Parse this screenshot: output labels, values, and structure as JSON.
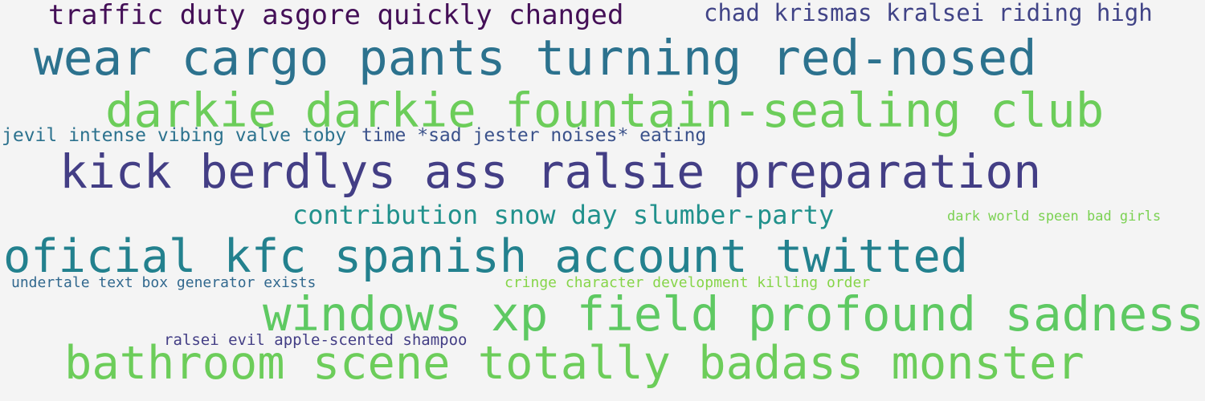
{
  "background": "#f4f4f4",
  "phrases": [
    {
      "text": "traffic duty asgore quickly changed",
      "color": "#440f57"
    },
    {
      "text": "chad krismas kralsei riding high",
      "color": "#414487"
    },
    {
      "text": "wear cargo pants turning red-nosed",
      "color": "#2c728e"
    },
    {
      "text": "darkie darkie fountain-sealing club",
      "color": "#6ccd5a"
    },
    {
      "text": "jevil intense vibing valve toby",
      "color": "#2c728e"
    },
    {
      "text": "time *sad jester noises* eating",
      "color": "#3b528b"
    },
    {
      "text": "kick berdlys ass ralsie preparation",
      "color": "#433e85"
    },
    {
      "text": "contribution snow day slumber-party",
      "color": "#21918c"
    },
    {
      "text": "dark world speen bad girls",
      "color": "#7ad151"
    },
    {
      "text": "oficial kfc spanish account twitted",
      "color": "#23818e"
    },
    {
      "text": "undertale text box generator exists",
      "color": "#31688e"
    },
    {
      "text": "cringe character development killing order",
      "color": "#86d549"
    },
    {
      "text": "windows xp field profound sadness",
      "color": "#5ec962"
    },
    {
      "text": "ralsei evil apple-scented shampoo",
      "color": "#433e85"
    },
    {
      "text": "bathroom scene totally badass monster",
      "color": "#6ccd5a"
    }
  ]
}
